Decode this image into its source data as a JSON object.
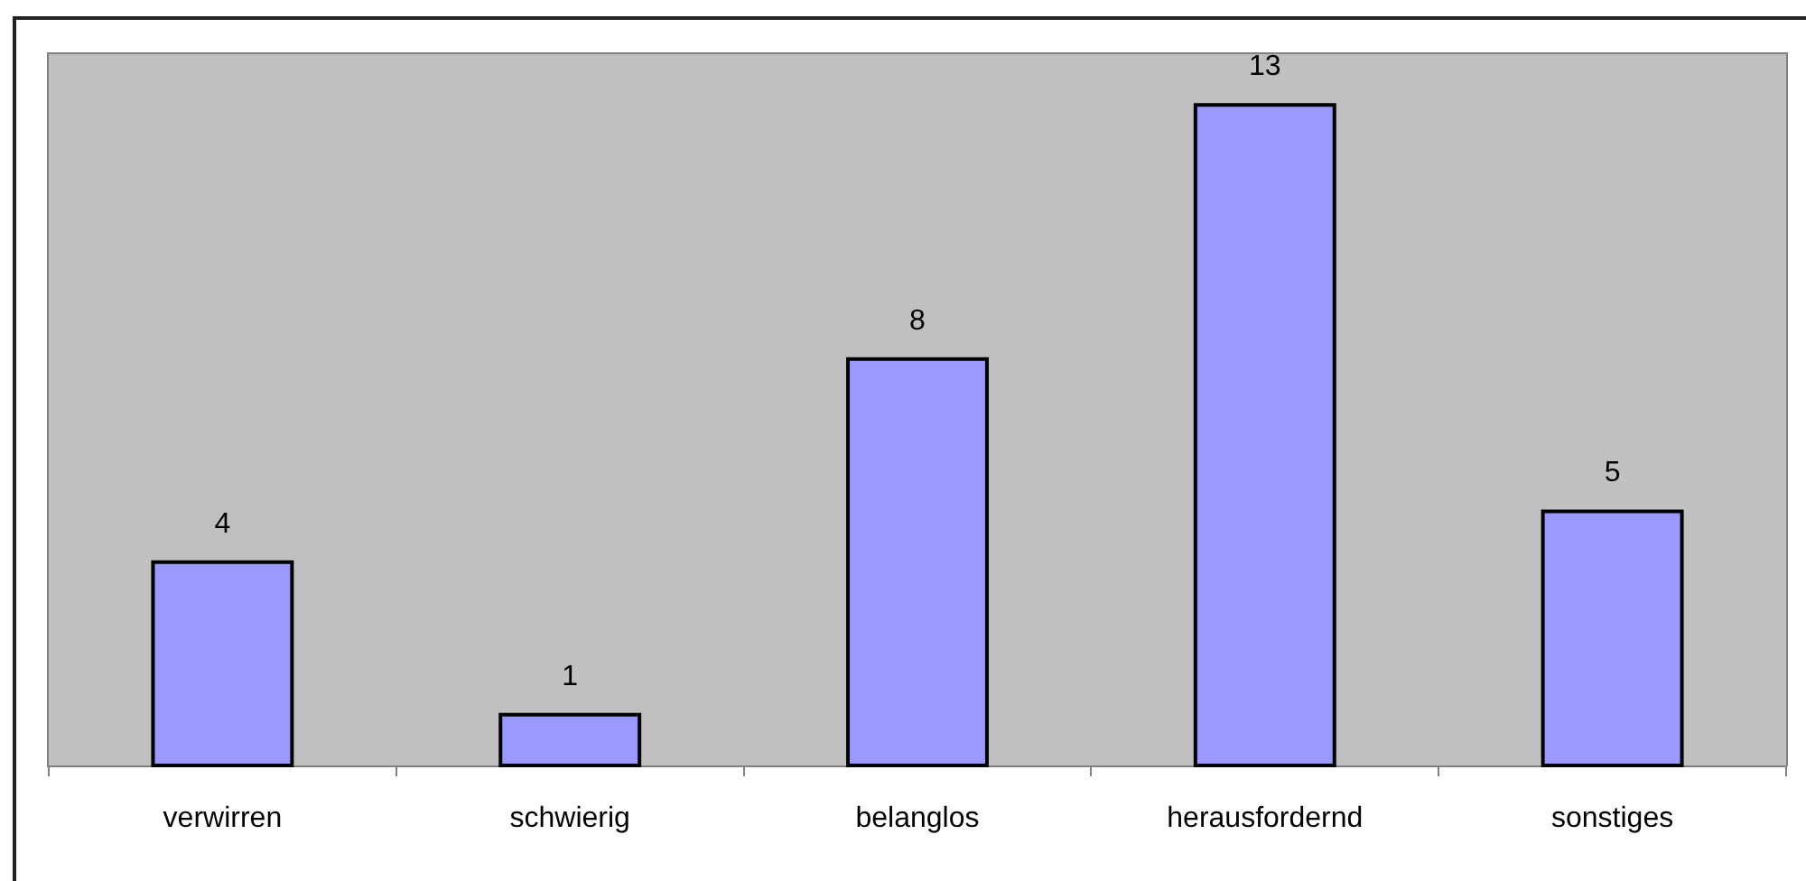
{
  "chart_data": {
    "type": "bar",
    "categories": [
      "verwirren",
      "schwierig",
      "belanglos",
      "herausfordernd",
      "sonstiges"
    ],
    "values": [
      4,
      1,
      8,
      13,
      5
    ],
    "color": "#9999ff",
    "ylim": [
      0,
      14
    ],
    "tick_labels": "x",
    "data_labels": true
  }
}
